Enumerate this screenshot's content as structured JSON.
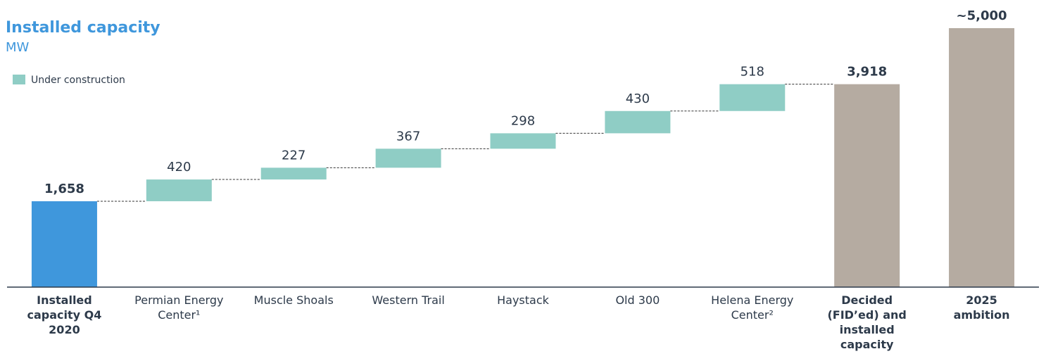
{
  "chart_data": {
    "type": "waterfall",
    "title": "Installed capacity",
    "subtitle": "MW",
    "categories": [
      "Installed capacity Q4 2020",
      "Permian Energy Center¹",
      "Muscle Shoals",
      "Western Trail",
      "Haystack",
      "Old 300",
      "Helena Energy Center²",
      "Decided (FID’ed) and installed capacity",
      "2025 ambition"
    ],
    "values": [
      1658,
      420,
      227,
      367,
      298,
      430,
      518,
      3918,
      5000
    ],
    "value_labels": [
      "1,658",
      "420",
      "227",
      "367",
      "298",
      "430",
      "518",
      "3,918",
      "~5,000"
    ],
    "measure": [
      "absolute",
      "relative",
      "relative",
      "relative",
      "relative",
      "relative",
      "relative",
      "total",
      "absolute"
    ],
    "colors": [
      "#3f97dc",
      "#8fcdc5",
      "#8fcdc5",
      "#8fcdc5",
      "#8fcdc5",
      "#8fcdc5",
      "#8fcdc5",
      "#b5aba1",
      "#b5aba1"
    ],
    "legend": {
      "name": "Under construction",
      "color": "#8fcdc5",
      "position": "upper left"
    }
  }
}
